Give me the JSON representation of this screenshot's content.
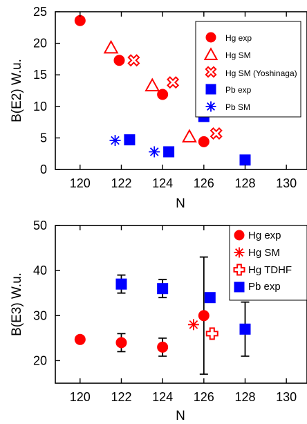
{
  "colors": {
    "hg": "#ff0000",
    "pb": "#0000ff",
    "axis": "#000000"
  },
  "chart_data": [
    {
      "type": "scatter",
      "xlabel": "N",
      "ylabel": "B(E2) W.u.",
      "xlim": [
        118.8,
        131
      ],
      "ylim": [
        0,
        25
      ],
      "xticks": [
        120,
        122,
        124,
        126,
        128,
        130
      ],
      "yticks": [
        0,
        5,
        10,
        15,
        20,
        25
      ],
      "legend_position": "top-right",
      "series": [
        {
          "name": "Hg exp",
          "marker": "circle",
          "color": "#ff0000",
          "points": [
            {
              "x": 120,
              "y": 23.6
            },
            {
              "x": 121.9,
              "y": 17.3
            },
            {
              "x": 124,
              "y": 11.9
            },
            {
              "x": 126,
              "y": 4.4
            }
          ]
        },
        {
          "name": "Hg SM",
          "marker": "triangle",
          "color": "#ff0000",
          "points": [
            {
              "x": 121.5,
              "y": 19.3
            },
            {
              "x": 123.5,
              "y": 13.3
            },
            {
              "x": 125.3,
              "y": 5.2
            }
          ]
        },
        {
          "name": "Hg SM (Yoshinaga)",
          "marker": "x-cross",
          "color": "#ff0000",
          "points": [
            {
              "x": 122.6,
              "y": 17.3
            },
            {
              "x": 124.5,
              "y": 13.8
            },
            {
              "x": 126.6,
              "y": 5.7
            }
          ]
        },
        {
          "name": "Pb exp",
          "marker": "square",
          "color": "#0000ff",
          "points": [
            {
              "x": 122.4,
              "y": 4.7
            },
            {
              "x": 124.3,
              "y": 2.8
            },
            {
              "x": 126,
              "y": 8.4
            },
            {
              "x": 128,
              "y": 1.5
            }
          ]
        },
        {
          "name": "Pb SM",
          "marker": "asterisk",
          "color": "#0000ff",
          "points": [
            {
              "x": 121.7,
              "y": 4.6
            },
            {
              "x": 123.6,
              "y": 2.8
            }
          ]
        }
      ]
    },
    {
      "type": "scatter",
      "xlabel": "N",
      "ylabel": "B(E3) W.u.",
      "xlim": [
        118.8,
        131
      ],
      "ylim": [
        15,
        50
      ],
      "xticks": [
        120,
        122,
        124,
        126,
        128,
        130
      ],
      "yticks": [
        20,
        30,
        40,
        50
      ],
      "legend_position": "top-right",
      "series": [
        {
          "name": "Hg exp",
          "marker": "circle",
          "color": "#ff0000",
          "points": [
            {
              "x": 120,
              "y": 24.7
            },
            {
              "x": 122,
              "y": 24,
              "err": 2
            },
            {
              "x": 124,
              "y": 23,
              "err": 2
            },
            {
              "x": 126,
              "y": 30,
              "err": 13
            }
          ]
        },
        {
          "name": "Hg SM",
          "marker": "asterisk",
          "color": "#ff0000",
          "points": [
            {
              "x": 125.5,
              "y": 28
            }
          ]
        },
        {
          "name": "Hg TDHF",
          "marker": "plus-open",
          "color": "#ff0000",
          "points": [
            {
              "x": 126.4,
              "y": 26
            }
          ]
        },
        {
          "name": "Pb exp",
          "marker": "square",
          "color": "#0000ff",
          "points": [
            {
              "x": 122,
              "y": 37,
              "err": 2
            },
            {
              "x": 124,
              "y": 36,
              "err": 2
            },
            {
              "x": 126.3,
              "y": 34
            },
            {
              "x": 128,
              "y": 27,
              "err": 6
            }
          ]
        }
      ]
    }
  ]
}
